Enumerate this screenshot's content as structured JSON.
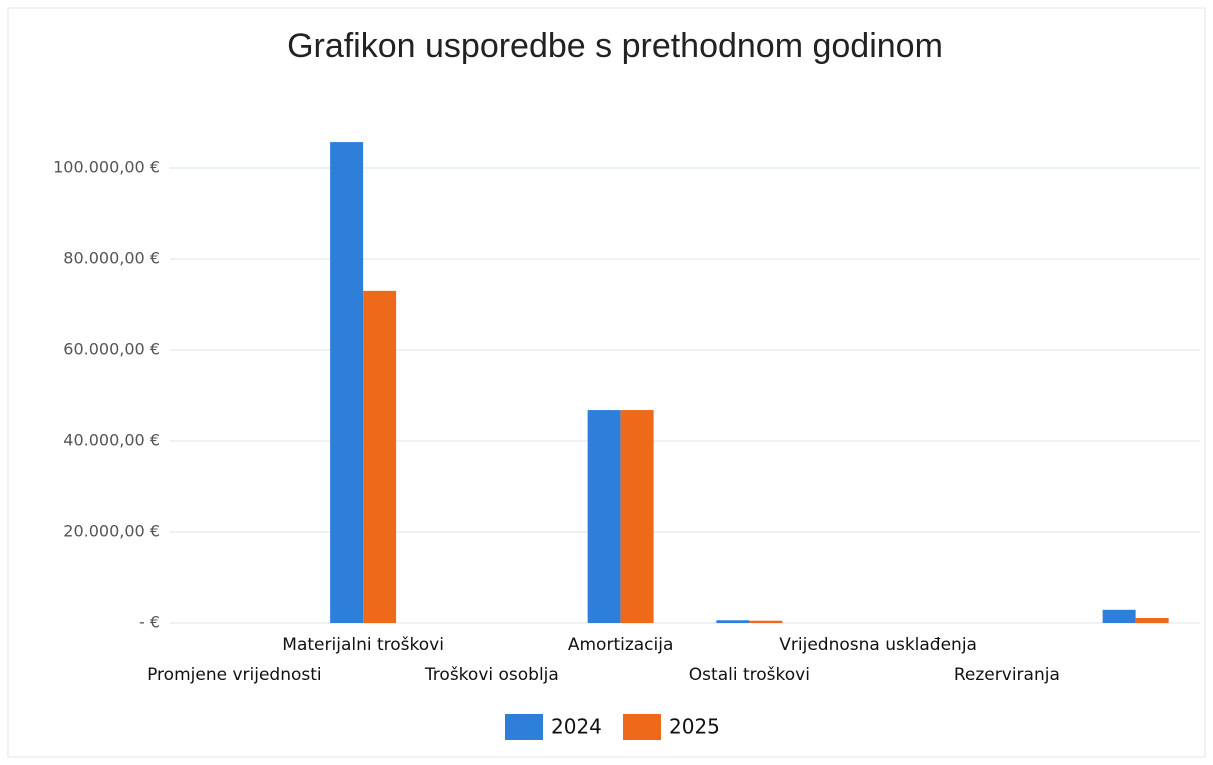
{
  "chart_data": {
    "type": "bar",
    "title": "Grafikon usporedbe s prethodnom godinom",
    "categories": [
      "Promjene vrijednosti",
      "Materijalni troškovi",
      "Troškovi osoblja",
      "Amortizacija",
      "Ostali troškovi",
      "Vrijednosna usklađenja",
      "Rezerviranja",
      null
    ],
    "series": [
      {
        "name": "2024",
        "color": "#2e7fd9",
        "values": [
          0,
          105700,
          0,
          46800,
          600,
          0,
          0,
          2900
        ]
      },
      {
        "name": "2025",
        "color": "#ee6a1a",
        "values": [
          0,
          73000,
          0,
          46800,
          500,
          0,
          0,
          1100
        ]
      }
    ],
    "ylim": [
      0,
      105000
    ],
    "yticks": [
      {
        "value": 0,
        "label": "-   €"
      },
      {
        "value": 20000,
        "label": "20.000,00 €"
      },
      {
        "value": 40000,
        "label": "40.000,00 €"
      },
      {
        "value": 60000,
        "label": "60.000,00 €"
      },
      {
        "value": 80000,
        "label": "80.000,00 €"
      },
      {
        "value": 100000,
        "label": "100.000,00 €"
      }
    ],
    "grid": true,
    "legend": "bottom"
  }
}
